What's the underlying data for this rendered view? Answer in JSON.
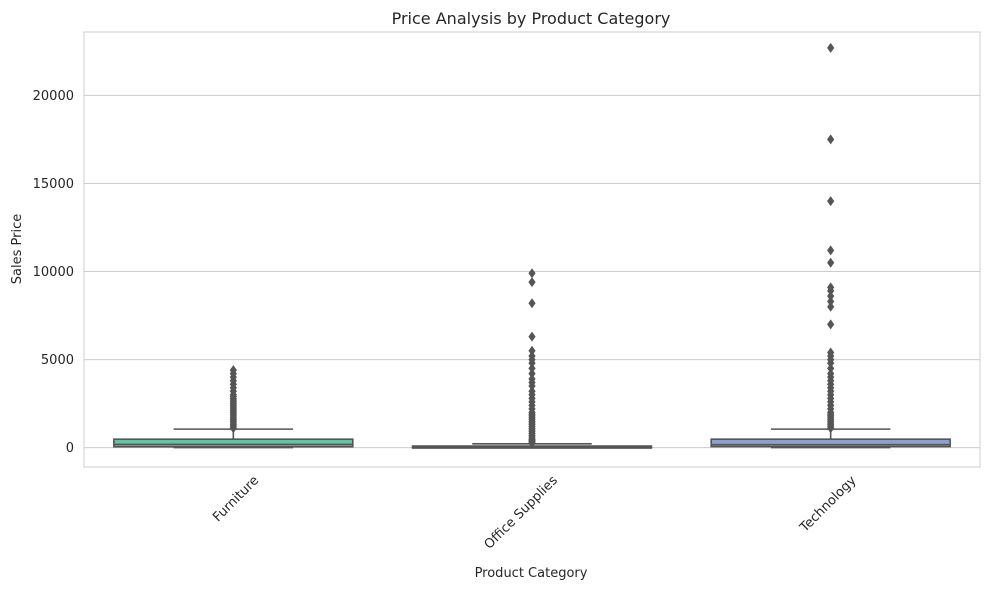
{
  "chart_data": {
    "type": "box",
    "title": "Price Analysis by Product Category",
    "xlabel": "Product Category",
    "ylabel": "Sales Price",
    "ylim": [
      -1100,
      23600
    ],
    "yticks": [
      0,
      5000,
      10000,
      15000,
      20000
    ],
    "grid": "horizontal",
    "categories": [
      "Furniture",
      "Office Supplies",
      "Technology"
    ],
    "colors": [
      "#66c2a5",
      "#fc8d62",
      "#8da0cb"
    ],
    "boxes": [
      {
        "category": "Furniture",
        "q1": 50,
        "median": 180,
        "q3": 480,
        "whisker_low": 2,
        "whisker_high": 1050,
        "outliers": [
          1100,
          1200,
          1300,
          1400,
          1500,
          1600,
          1700,
          1800,
          1900,
          2000,
          2100,
          2200,
          2300,
          2400,
          2500,
          2600,
          2700,
          2800,
          2900,
          3000,
          3200,
          3400,
          3600,
          3800,
          4000,
          4200,
          4400
        ]
      },
      {
        "category": "Office Supplies",
        "q1": 8,
        "median": 25,
        "q3": 90,
        "whisker_low": 1,
        "whisker_high": 215,
        "outliers": [
          250,
          300,
          350,
          400,
          450,
          500,
          600,
          700,
          800,
          900,
          1000,
          1100,
          1200,
          1300,
          1400,
          1500,
          1600,
          1700,
          1800,
          1900,
          2000,
          2200,
          2400,
          2600,
          2800,
          3000,
          3200,
          3500,
          3700,
          3900,
          4200,
          4500,
          4800,
          5000,
          5200,
          5500,
          6300,
          8200,
          9400,
          9900
        ]
      },
      {
        "category": "Technology",
        "q1": 60,
        "median": 170,
        "q3": 480,
        "whisker_low": 1,
        "whisker_high": 1050,
        "outliers": [
          1100,
          1200,
          1300,
          1400,
          1500,
          1600,
          1700,
          1800,
          1900,
          2000,
          2200,
          2400,
          2600,
          2800,
          3000,
          3200,
          3400,
          3600,
          3800,
          4000,
          4200,
          4500,
          4800,
          5000,
          5200,
          5400,
          7000,
          8000,
          8300,
          8600,
          8900,
          9100,
          10500,
          11200,
          14000,
          17500,
          22700
        ]
      }
    ]
  }
}
